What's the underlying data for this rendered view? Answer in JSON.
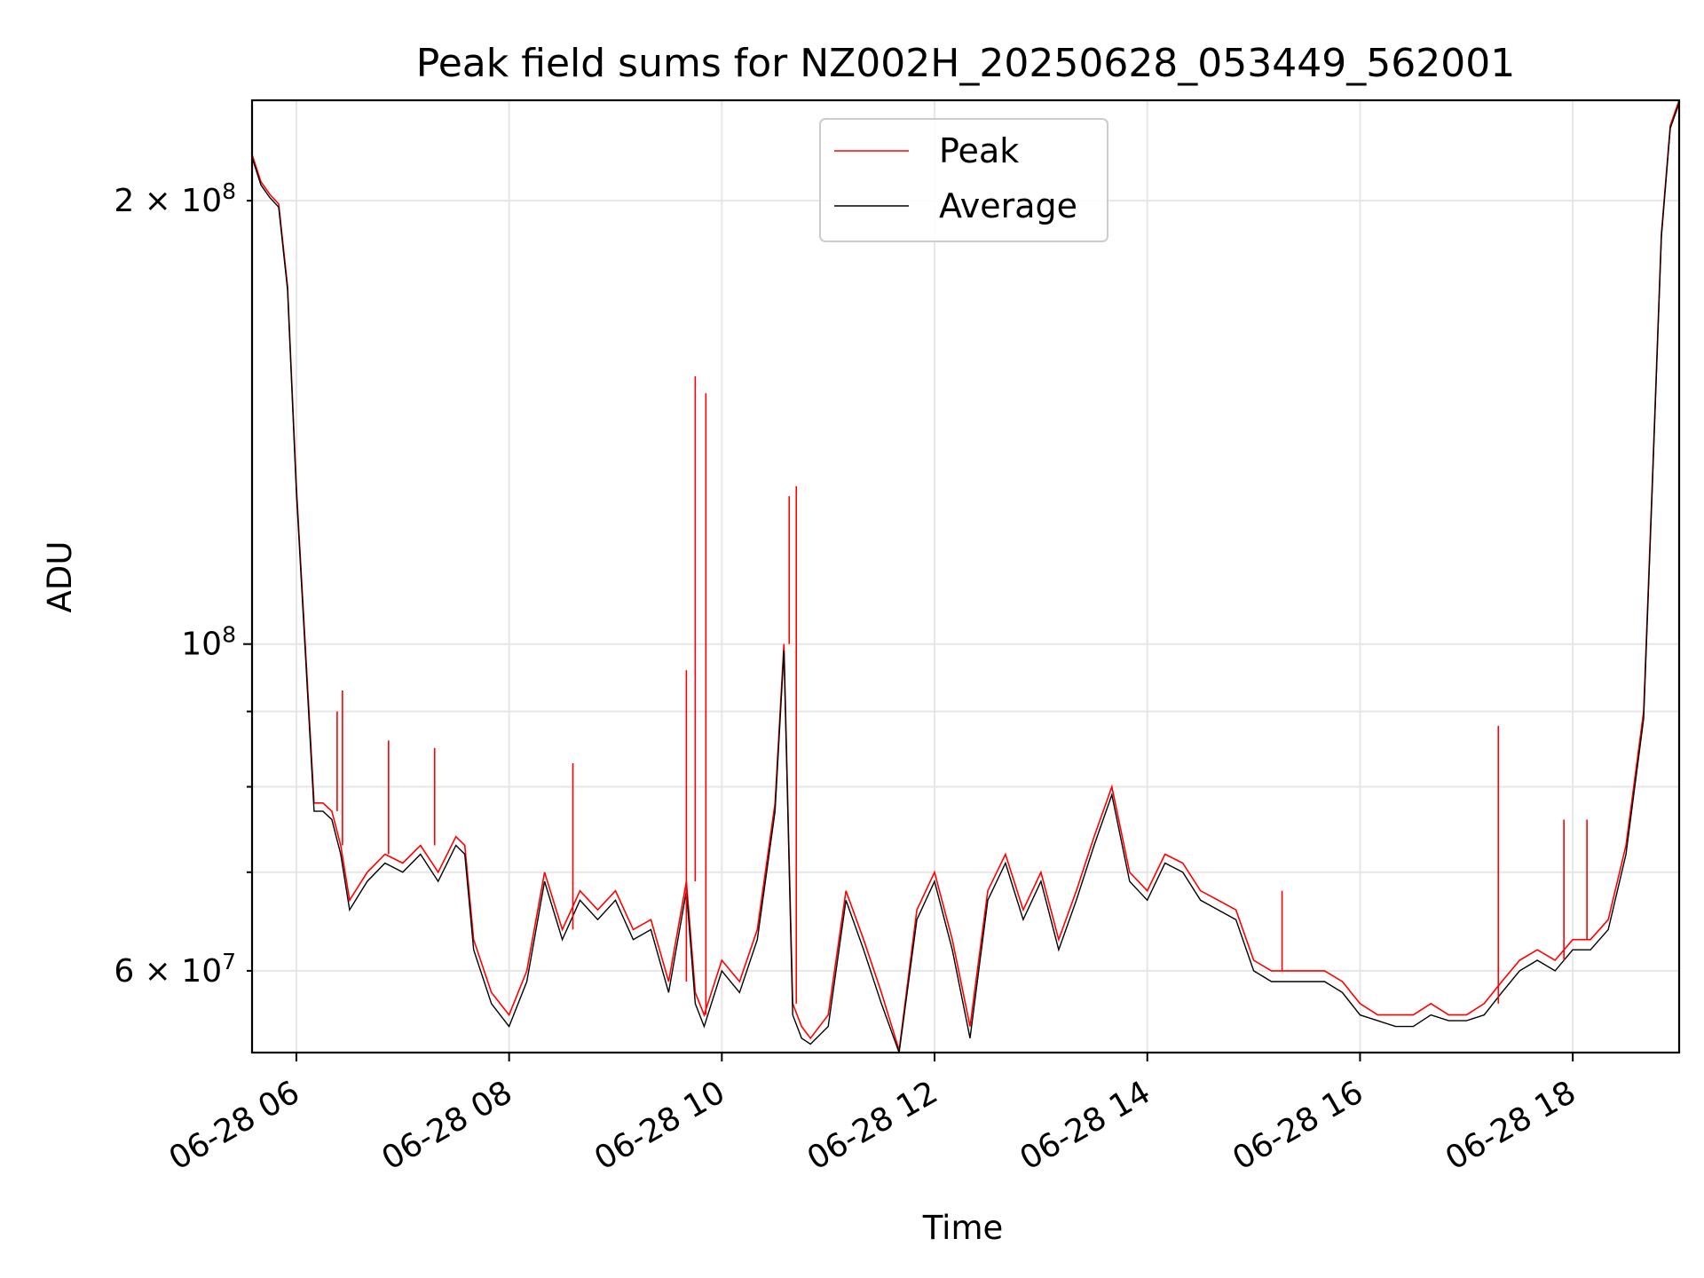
{
  "chart_data": {
    "type": "line",
    "title": "Peak field sums for NZ002H_20250628_053449_562001",
    "xlabel": "Time",
    "ylabel": "ADU",
    "yscale": "log",
    "xlim": [
      "2025-06-28 05:35",
      "2025-06-28 19:00"
    ],
    "ylim": [
      52800000,
      234000000
    ],
    "grid": true,
    "legend": {
      "placement": "top-center",
      "entries": [
        "Peak",
        "Average"
      ]
    },
    "x_ticks": [
      "06-28 06",
      "06-28 08",
      "06-28 10",
      "06-28 12",
      "06-28 14",
      "06-28 16",
      "06-28 18"
    ],
    "y_ticks": [
      "2 × 10^8",
      "10^8",
      "6 × 10^7"
    ],
    "colors": {
      "Peak": "#ff0000",
      "Average": "#000000"
    },
    "x": [
      "05:35",
      "05:40",
      "05:45",
      "05:50",
      "05:55",
      "06:00",
      "06:05",
      "06:10",
      "06:15",
      "06:20",
      "06:25",
      "06:30",
      "06:40",
      "06:50",
      "07:00",
      "07:10",
      "07:20",
      "07:30",
      "07:35",
      "07:40",
      "07:50",
      "08:00",
      "08:10",
      "08:20",
      "08:30",
      "08:40",
      "08:50",
      "09:00",
      "09:10",
      "09:20",
      "09:30",
      "09:40",
      "09:45",
      "09:50",
      "10:00",
      "10:10",
      "10:20",
      "10:30",
      "10:35",
      "10:40",
      "10:45",
      "10:50",
      "11:00",
      "11:10",
      "11:20",
      "11:30",
      "11:40",
      "11:50",
      "12:00",
      "12:10",
      "12:20",
      "12:30",
      "12:40",
      "12:50",
      "13:00",
      "13:10",
      "13:20",
      "13:30",
      "13:40",
      "13:50",
      "14:00",
      "14:10",
      "14:20",
      "14:30",
      "14:40",
      "14:50",
      "15:00",
      "15:10",
      "15:20",
      "15:30",
      "15:40",
      "15:50",
      "16:00",
      "16:10",
      "16:20",
      "16:30",
      "16:40",
      "16:50",
      "17:00",
      "17:10",
      "17:20",
      "17:30",
      "17:40",
      "17:50",
      "18:00",
      "18:10",
      "18:20",
      "18:30",
      "18:40",
      "18:45",
      "18:50",
      "18:55",
      "19:00"
    ],
    "series": [
      {
        "name": "Peak",
        "values": [
          215000000,
          206000000,
          202000000,
          199000000,
          175000000,
          128000000,
          100000000,
          78000000,
          78000000,
          77000000,
          73000000,
          67000000,
          70000000,
          72000000,
          71000000,
          73000000,
          70000000,
          74000000,
          73000000,
          63000000,
          58000000,
          56000000,
          60000000,
          70000000,
          64000000,
          68000000,
          66000000,
          68000000,
          64000000,
          65000000,
          59000000,
          69000000,
          58000000,
          56000000,
          61000000,
          59000000,
          64000000,
          78000000,
          100000000,
          57000000,
          55000000,
          54000000,
          56000000,
          68000000,
          63000000,
          58000000,
          53000000,
          66000000,
          70000000,
          63000000,
          55000000,
          68000000,
          72000000,
          66000000,
          70000000,
          63000000,
          68000000,
          74000000,
          80000000,
          70000000,
          68000000,
          72000000,
          71000000,
          68000000,
          67000000,
          66000000,
          61000000,
          60000000,
          60000000,
          60000000,
          60000000,
          59000000,
          57000000,
          56000000,
          56000000,
          56000000,
          57000000,
          56000000,
          56000000,
          57000000,
          59000000,
          61000000,
          62000000,
          61000000,
          63000000,
          63000000,
          65000000,
          73000000,
          90000000,
          130000000,
          190000000,
          225000000,
          234000000
        ]
      },
      {
        "name": "Average",
        "values": [
          214000000,
          205000000,
          201000000,
          198000000,
          174000000,
          127000000,
          99000000,
          77000000,
          77000000,
          76000000,
          72000000,
          66000000,
          69000000,
          71000000,
          70000000,
          72000000,
          69000000,
          73000000,
          72000000,
          62000000,
          57000000,
          55000000,
          59000000,
          69000000,
          63000000,
          67000000,
          65000000,
          67000000,
          63000000,
          64000000,
          58000000,
          68000000,
          57000000,
          55000000,
          60000000,
          58000000,
          63000000,
          77000000,
          99000000,
          56000000,
          54000000,
          53500000,
          55000000,
          67000000,
          62000000,
          57000000,
          52800000,
          65000000,
          69000000,
          62000000,
          54000000,
          67000000,
          71000000,
          65000000,
          69000000,
          62000000,
          67000000,
          73000000,
          79000000,
          69000000,
          67000000,
          71000000,
          70000000,
          67000000,
          66000000,
          65000000,
          60000000,
          59000000,
          59000000,
          59000000,
          59000000,
          58000000,
          56000000,
          55500000,
          55000000,
          55000000,
          56000000,
          55500000,
          55500000,
          56000000,
          58000000,
          60000000,
          61000000,
          60000000,
          62000000,
          62000000,
          64000000,
          72000000,
          89000000,
          129000000,
          189000000,
          224000000,
          233000000
        ]
      }
    ],
    "spikes": [
      {
        "time": "06:23",
        "value": 90000000
      },
      {
        "time": "06:26",
        "value": 93000000
      },
      {
        "time": "06:52",
        "value": 86000000
      },
      {
        "time": "07:18",
        "value": 85000000
      },
      {
        "time": "08:36",
        "value": 83000000
      },
      {
        "time": "09:40",
        "value": 96000000
      },
      {
        "time": "09:45",
        "value": 152000000
      },
      {
        "time": "09:51",
        "value": 148000000
      },
      {
        "time": "10:38",
        "value": 126000000
      },
      {
        "time": "10:42",
        "value": 128000000
      },
      {
        "time": "15:16",
        "value": 68000000
      },
      {
        "time": "17:18",
        "value": 88000000
      },
      {
        "time": "17:55",
        "value": 76000000
      },
      {
        "time": "18:08",
        "value": 76000000
      }
    ]
  }
}
